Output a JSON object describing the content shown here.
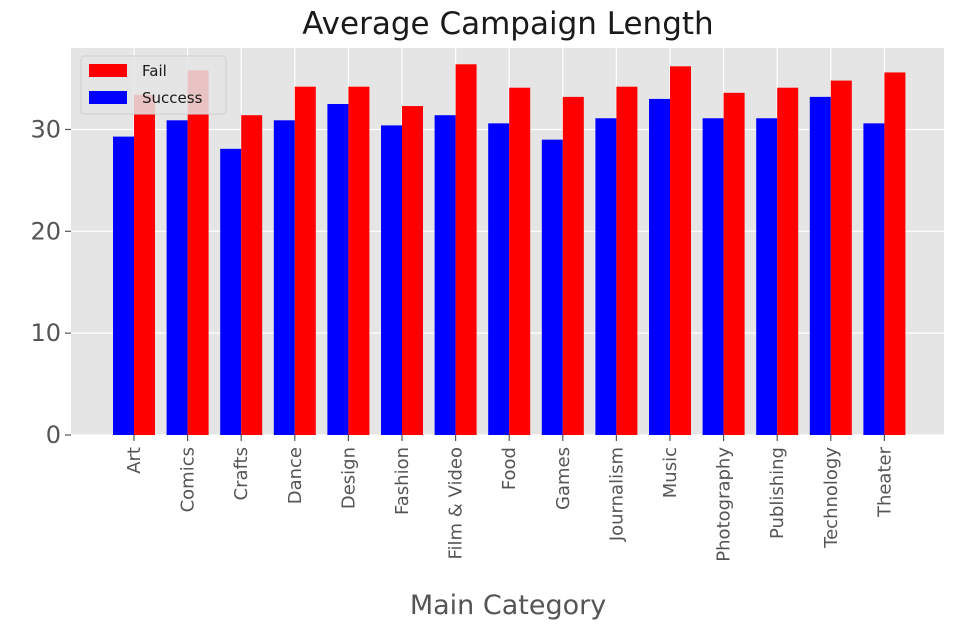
{
  "chart_data": {
    "type": "bar",
    "title": "Average Campaign Length",
    "xlabel": "Main Category",
    "ylabel": "",
    "ylim": [
      0,
      38
    ],
    "yticks": [
      0,
      10,
      20,
      30
    ],
    "grid": true,
    "legend_position": "top-left",
    "categories": [
      "Art",
      "Comics",
      "Crafts",
      "Dance",
      "Design",
      "Fashion",
      "Film & Video",
      "Food",
      "Games",
      "Journalism",
      "Music",
      "Photography",
      "Publishing",
      "Technology",
      "Theater"
    ],
    "series": [
      {
        "name": "Success",
        "color": "#0000ff",
        "values": [
          29.3,
          30.9,
          28.1,
          30.9,
          32.5,
          30.4,
          31.4,
          30.6,
          29.0,
          31.1,
          33.0,
          31.1,
          31.1,
          33.2,
          30.6
        ]
      },
      {
        "name": "Fail",
        "color": "#ff0000",
        "values": [
          33.4,
          35.8,
          31.4,
          34.2,
          34.2,
          32.3,
          36.4,
          34.1,
          33.2,
          34.2,
          36.2,
          33.6,
          34.1,
          34.8,
          35.6
        ]
      }
    ],
    "plot_background": "#e5e5e5",
    "grid_color": "#ffffff"
  }
}
